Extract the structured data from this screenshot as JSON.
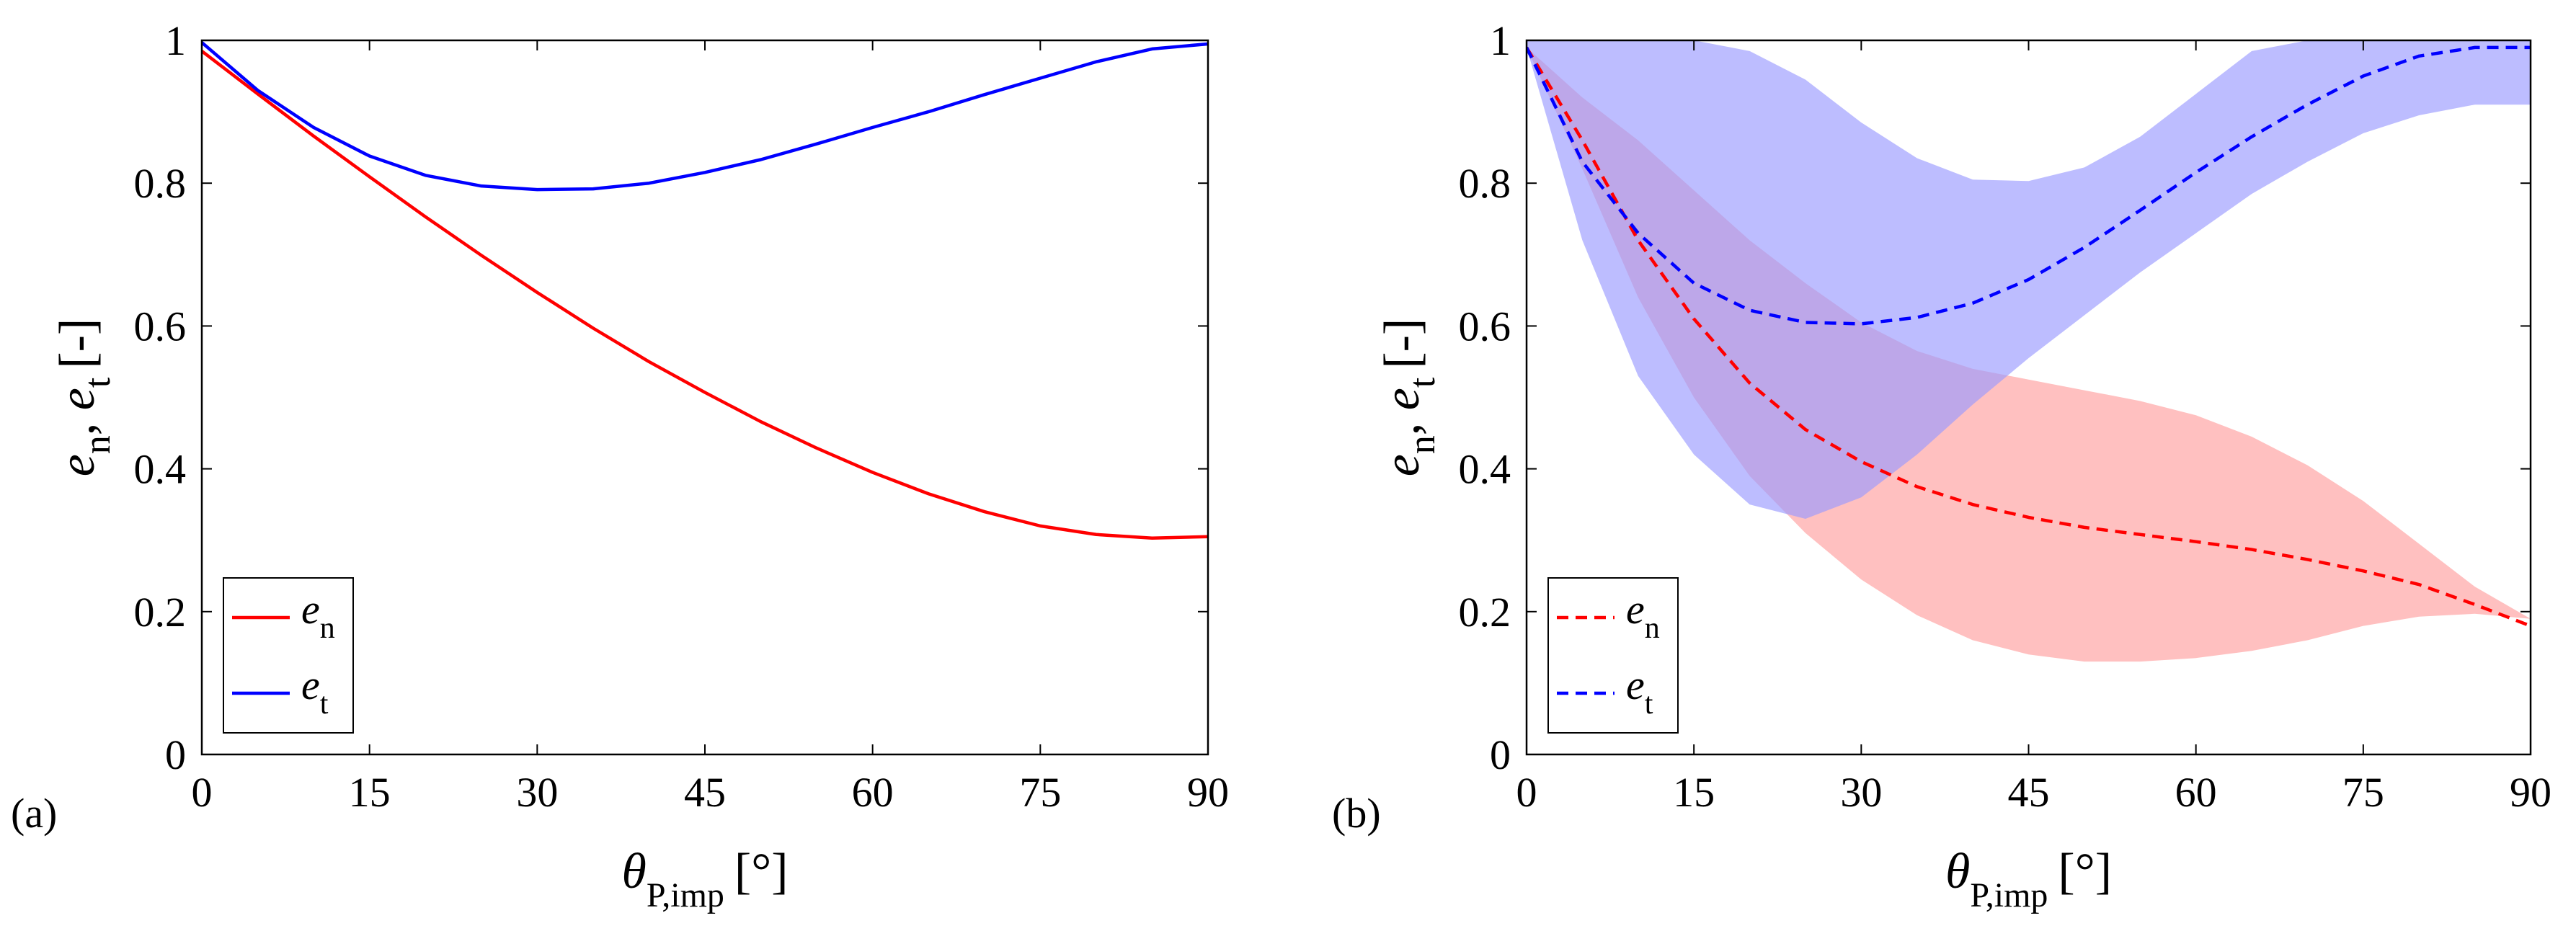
{
  "chart_data": [
    {
      "panel_label": "(a)",
      "type": "line",
      "xlabel_main": "θ",
      "xlabel_sub": "P,imp",
      "xlabel_unit": "[°]",
      "ylabel_e": "e",
      "ylabel_n_sub": "n",
      "ylabel_sep": ",",
      "ylabel_t_sub": "t",
      "ylabel_unit": "[-]",
      "xlim": [
        0,
        90
      ],
      "ylim": [
        0,
        1
      ],
      "xticks": [
        0,
        15,
        30,
        45,
        60,
        75,
        90
      ],
      "yticks": [
        0,
        0.2,
        0.4,
        0.6,
        0.8,
        1
      ],
      "ytick_labels": [
        "0",
        "0.2",
        "0.4",
        "0.6",
        "0.8",
        "1"
      ],
      "legend_position": "bottom-left",
      "series": [
        {
          "name": "e_n",
          "label_main": "e",
          "label_sub": "n",
          "color": "#ff0000",
          "dash": "solid",
          "x": [
            0,
            5,
            10,
            15,
            20,
            25,
            30,
            35,
            40,
            45,
            50,
            55,
            60,
            65,
            70,
            75,
            80,
            85,
            90
          ],
          "y": [
            0.985,
            0.925,
            0.866,
            0.809,
            0.753,
            0.699,
            0.647,
            0.597,
            0.55,
            0.507,
            0.466,
            0.429,
            0.395,
            0.365,
            0.34,
            0.32,
            0.308,
            0.303,
            0.305
          ]
        },
        {
          "name": "e_t",
          "label_main": "e",
          "label_sub": "t",
          "color": "#0000ff",
          "dash": "solid",
          "x": [
            0,
            5,
            10,
            15,
            20,
            25,
            30,
            35,
            40,
            45,
            50,
            55,
            60,
            65,
            70,
            75,
            80,
            85,
            90
          ],
          "y": [
            0.997,
            0.93,
            0.878,
            0.838,
            0.811,
            0.796,
            0.791,
            0.792,
            0.8,
            0.815,
            0.833,
            0.855,
            0.878,
            0.9,
            0.924,
            0.947,
            0.97,
            0.988,
            0.995
          ]
        }
      ]
    },
    {
      "panel_label": "(b)",
      "type": "area",
      "xlabel_main": "θ",
      "xlabel_sub": "P,imp",
      "xlabel_unit": "[°]",
      "ylabel_e": "e",
      "ylabel_n_sub": "n",
      "ylabel_sep": ",",
      "ylabel_t_sub": "t",
      "ylabel_unit": "[-]",
      "xlim": [
        0,
        90
      ],
      "ylim": [
        0,
        1
      ],
      "xticks": [
        0,
        15,
        30,
        45,
        60,
        75,
        90
      ],
      "yticks": [
        0,
        0.2,
        0.4,
        0.6,
        0.8,
        1
      ],
      "ytick_labels": [
        "0",
        "0.2",
        "0.4",
        "0.6",
        "0.8",
        "1"
      ],
      "legend_position": "bottom-left",
      "series": [
        {
          "name": "e_n",
          "label_main": "e",
          "label_sub": "n",
          "color": "#ff0000",
          "band_color": "#ff9e9e",
          "dash": "dashed",
          "x": [
            0,
            5,
            10,
            15,
            20,
            25,
            30,
            35,
            40,
            45,
            50,
            55,
            60,
            65,
            70,
            75,
            80,
            85,
            90
          ],
          "y": [
            0.99,
            0.86,
            0.72,
            0.61,
            0.52,
            0.455,
            0.41,
            0.375,
            0.35,
            0.332,
            0.318,
            0.308,
            0.298,
            0.287,
            0.273,
            0.257,
            0.238,
            0.21,
            0.18
          ],
          "upper": [
            0.99,
            0.92,
            0.86,
            0.79,
            0.72,
            0.66,
            0.605,
            0.565,
            0.54,
            0.525,
            0.51,
            0.495,
            0.475,
            0.445,
            0.405,
            0.355,
            0.295,
            0.235,
            0.19
          ],
          "lower": [
            0.99,
            0.82,
            0.64,
            0.5,
            0.39,
            0.31,
            0.245,
            0.195,
            0.16,
            0.14,
            0.13,
            0.13,
            0.135,
            0.145,
            0.16,
            0.18,
            0.193,
            0.197,
            0.19
          ]
        },
        {
          "name": "e_t",
          "label_main": "e",
          "label_sub": "t",
          "color": "#0000ff",
          "band_color": "#9999ff",
          "dash": "dashed",
          "x": [
            0,
            5,
            10,
            15,
            20,
            25,
            30,
            35,
            40,
            45,
            50,
            55,
            60,
            65,
            70,
            75,
            80,
            85,
            90
          ],
          "y": [
            0.99,
            0.83,
            0.73,
            0.66,
            0.622,
            0.605,
            0.603,
            0.612,
            0.632,
            0.665,
            0.71,
            0.762,
            0.815,
            0.865,
            0.91,
            0.95,
            0.978,
            0.99,
            0.99
          ],
          "upper": [
            1.0,
            1.0,
            1.0,
            1.0,
            0.985,
            0.945,
            0.885,
            0.835,
            0.805,
            0.803,
            0.822,
            0.865,
            0.925,
            0.985,
            1.0,
            1.0,
            1.0,
            1.0,
            1.0
          ],
          "lower": [
            0.99,
            0.72,
            0.53,
            0.42,
            0.35,
            0.33,
            0.36,
            0.42,
            0.49,
            0.555,
            0.615,
            0.675,
            0.73,
            0.785,
            0.83,
            0.87,
            0.895,
            0.91,
            0.91
          ]
        }
      ]
    }
  ]
}
